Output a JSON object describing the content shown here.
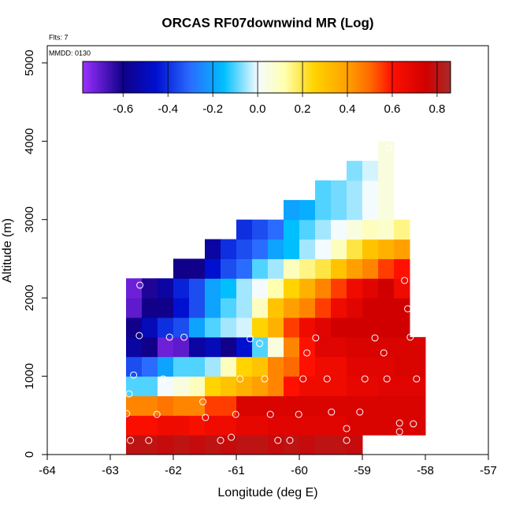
{
  "chart_data": {
    "type": "heatmap",
    "title": "ORCAS RF07downwind MR (Log)",
    "annotations": [
      "Flts: 7",
      "MMDD: 0130"
    ],
    "xlabel": "Longitude (deg E)",
    "ylabel": "Altitude (m)",
    "xlim": [
      -64,
      -57
    ],
    "ylim": [
      0,
      5220
    ],
    "xticks": [
      -64,
      -63,
      -62,
      -61,
      -60,
      -59,
      -58,
      -57
    ],
    "yticks": [
      0,
      1000,
      2000,
      3000,
      4000,
      5000
    ],
    "xbins": [
      -62.75,
      -62.5,
      -62.25,
      -62,
      -61.75,
      -61.5,
      -61.25,
      -61,
      -60.75,
      -60.5,
      -60.25,
      -60,
      -59.75,
      -59.5,
      -59.25,
      -59,
      -58.75,
      -58.5,
      -58.25,
      -58
    ],
    "ybins": [
      0,
      250,
      500,
      750,
      1000,
      1250,
      1500,
      1750,
      2000,
      2250,
      2500,
      2750,
      3000,
      3250,
      3500,
      3750,
      4000
    ],
    "z": [
      [
        0.8,
        0.8,
        0.78,
        0.8,
        0.78,
        0.8,
        0.78,
        0.8,
        0.8,
        0.78,
        0.8,
        0.78,
        0.8,
        0.8,
        0.78,
        null,
        null,
        null,
        null
      ],
      [
        0.62,
        0.62,
        0.65,
        0.65,
        0.62,
        0.65,
        0.65,
        0.68,
        0.68,
        0.7,
        0.7,
        0.7,
        0.7,
        0.7,
        0.72,
        0.72,
        0.72,
        0.72,
        0.72
      ],
      [
        0.45,
        0.45,
        0.48,
        0.45,
        0.45,
        0.55,
        0.55,
        0.72,
        0.72,
        0.72,
        0.72,
        0.72,
        0.72,
        0.72,
        0.72,
        0.72,
        0.72,
        0.72,
        0.72
      ],
      [
        -0.1,
        -0.1,
        0.0,
        0.05,
        0.1,
        0.25,
        0.3,
        0.35,
        0.4,
        0.45,
        0.6,
        0.65,
        0.65,
        0.65,
        0.68,
        0.68,
        0.7,
        0.7,
        0.7
      ],
      [
        -0.35,
        -0.3,
        -0.2,
        -0.1,
        -0.1,
        -0.05,
        0.1,
        0.25,
        0.3,
        0.45,
        0.5,
        0.6,
        0.65,
        0.65,
        0.7,
        0.7,
        0.7,
        0.72,
        0.72
      ],
      [
        -0.55,
        -0.6,
        -0.72,
        -0.7,
        -0.55,
        -0.5,
        -0.6,
        -0.45,
        -0.1,
        0.05,
        0.45,
        0.6,
        0.7,
        0.7,
        0.72,
        0.72,
        0.72,
        0.72,
        0.72
      ],
      [
        -0.6,
        -0.5,
        -0.4,
        -0.35,
        -0.2,
        -0.1,
        -0.05,
        -0.02,
        0.25,
        0.35,
        0.55,
        0.65,
        0.7,
        0.75,
        0.75,
        0.75,
        0.75,
        0.75,
        null
      ],
      [
        -0.7,
        -0.6,
        -0.6,
        -0.45,
        -0.35,
        -0.2,
        -0.1,
        -0.05,
        0.1,
        0.3,
        0.4,
        0.45,
        0.55,
        0.65,
        0.7,
        0.75,
        0.75,
        0.75,
        null
      ],
      [
        -0.72,
        -0.62,
        -0.55,
        -0.42,
        -0.35,
        -0.2,
        -0.15,
        -0.05,
        0.0,
        0.12,
        0.25,
        0.35,
        0.45,
        0.55,
        0.65,
        0.7,
        0.75,
        0.65,
        null
      ],
      [
        null,
        null,
        null,
        -0.6,
        -0.6,
        -0.45,
        -0.35,
        -0.3,
        -0.1,
        -0.05,
        0.1,
        0.15,
        0.2,
        0.3,
        0.4,
        0.45,
        0.55,
        0.6,
        null
      ],
      [
        null,
        null,
        null,
        null,
        null,
        -0.55,
        -0.4,
        -0.35,
        -0.3,
        -0.2,
        -0.15,
        -0.05,
        0.0,
        0.1,
        0.2,
        0.3,
        0.35,
        0.4,
        null
      ],
      [
        null,
        null,
        null,
        null,
        null,
        null,
        null,
        -0.4,
        -0.35,
        -0.3,
        -0.15,
        -0.1,
        -0.05,
        0.0,
        0.05,
        0.1,
        0.08,
        0.15,
        null
      ],
      [
        null,
        null,
        null,
        null,
        null,
        null,
        null,
        null,
        null,
        null,
        -0.2,
        -0.18,
        -0.1,
        -0.08,
        -0.05,
        0.0,
        0.05,
        null,
        null
      ],
      [
        null,
        null,
        null,
        null,
        null,
        null,
        null,
        null,
        null,
        null,
        null,
        null,
        -0.1,
        -0.08,
        -0.05,
        0.0,
        0.05,
        null,
        null
      ],
      [
        null,
        null,
        null,
        null,
        null,
        null,
        null,
        null,
        null,
        null,
        null,
        null,
        null,
        null,
        -0.07,
        -0.02,
        0.05,
        null,
        null
      ],
      [
        null,
        null,
        null,
        null,
        null,
        null,
        null,
        null,
        null,
        null,
        null,
        null,
        null,
        null,
        null,
        null,
        0.05,
        null,
        null
      ]
    ],
    "colorscale": [
      [
        -0.78,
        "#9b30ff"
      ],
      [
        -0.6,
        "#10008a"
      ],
      [
        -0.45,
        "#0010d0"
      ],
      [
        -0.3,
        "#2a6cff"
      ],
      [
        -0.15,
        "#00bfff"
      ],
      [
        0,
        "#f4fbff"
      ],
      [
        0.12,
        "#ffffb0"
      ],
      [
        0.25,
        "#ffd400"
      ],
      [
        0.4,
        "#ffa000"
      ],
      [
        0.5,
        "#ff6a00"
      ],
      [
        0.6,
        "#ff1000"
      ],
      [
        0.75,
        "#d00000"
      ],
      [
        0.86,
        "#a82a2a"
      ]
    ],
    "colorbar": {
      "lim": [
        -0.78,
        0.86
      ],
      "ticks": [
        -0.6,
        -0.4,
        -0.2,
        {
          "value": 0,
          "label": "0.0"
        },
        0.2,
        0.4,
        0.6,
        0.8
      ]
    },
    "points": {
      "color": "#ffffff",
      "x": [
        -62.53,
        -62.54,
        -62.63,
        -62.7,
        -62.74,
        -62.68,
        -62.39,
        -62.26,
        -62.16,
        -62.06,
        -61.83,
        -61.53,
        -61.49,
        -61.25,
        -61.08,
        -61.01,
        -60.94,
        -60.78,
        -60.63,
        -60.55,
        -60.46,
        -60.34,
        -60.15,
        -60.01,
        -59.94,
        -59.88,
        -59.74,
        -59.56,
        -59.49,
        -59.25,
        -59.25,
        -59.04,
        -58.96,
        -58.8,
        -58.66,
        -58.61,
        -58.58,
        -58.41,
        -58.41,
        -58.33,
        -58.28,
        -58.24,
        -58.19,
        -58.14
      ],
      "y": [
        2163,
        1519,
        1016,
        775,
        523,
        181,
        181,
        513,
        966,
        1499,
        1499,
        674,
        473,
        181,
        221,
        513,
        966,
        1479,
        1418,
        966,
        513,
        181,
        181,
        513,
        966,
        1298,
        1489,
        966,
        543,
        332,
        181,
        543,
        966,
        1489,
        1298,
        966,
        3913,
        402,
        292,
        2223,
        1861,
        1499,
        392,
        966
      ]
    }
  }
}
